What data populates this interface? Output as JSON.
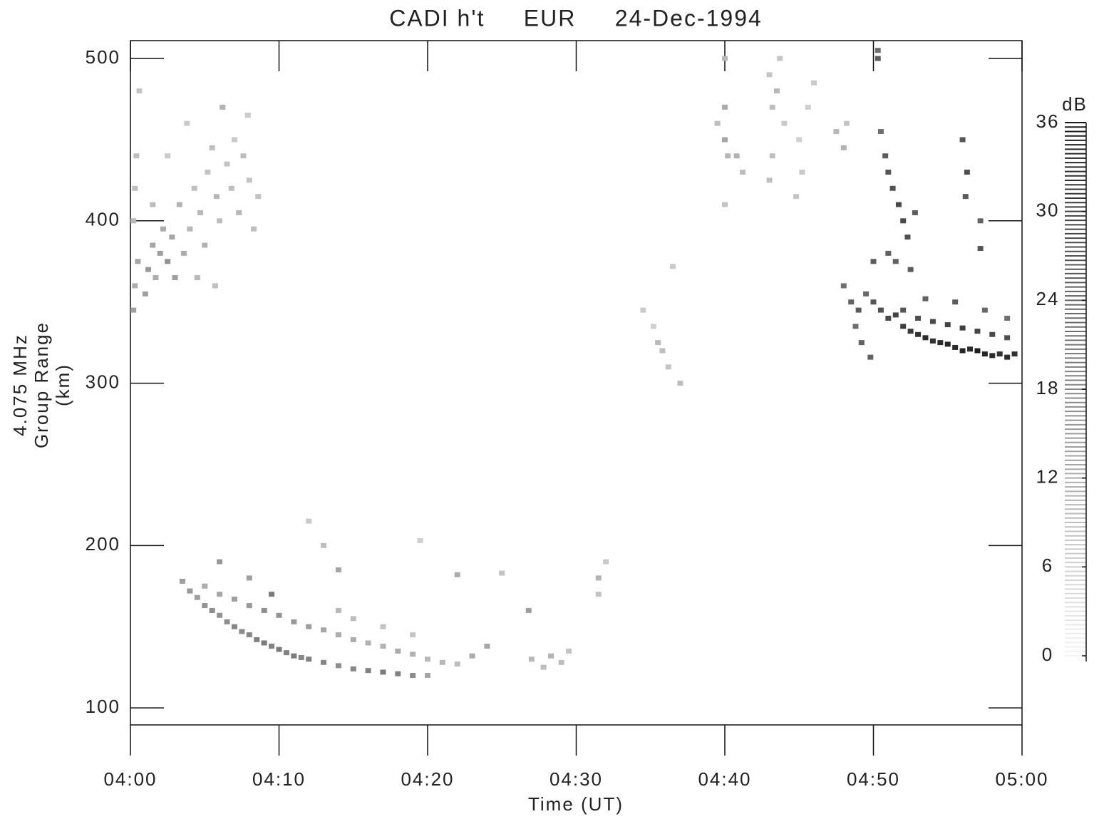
{
  "chart_data": {
    "type": "heatmap",
    "title": "CADI h't     EUR     24-Dec-1994",
    "x_label": "Time (UT)",
    "y_label": [
      "4.075 MHz",
      "Group Range",
      "(km)"
    ],
    "xlim": [
      0,
      60
    ],
    "xticks": [
      {
        "value": 0,
        "label": "04:00"
      },
      {
        "value": 10,
        "label": "04:10"
      },
      {
        "value": 20,
        "label": "04:20"
      },
      {
        "value": 30,
        "label": "04:30"
      },
      {
        "value": 40,
        "label": "04:40"
      },
      {
        "value": 50,
        "label": "04:50"
      },
      {
        "value": 60,
        "label": "05:00"
      }
    ],
    "ylim": [
      89.5,
      511
    ],
    "yticks": [
      100,
      200,
      300,
      400,
      500
    ],
    "colorbar": {
      "label": "dB",
      "lim": [
        0,
        36
      ],
      "ticks": [
        0,
        6,
        12,
        18,
        24,
        30,
        36
      ]
    },
    "x": [
      0.2,
      0.3,
      0.5,
      0.2,
      0.3,
      0.4,
      0.6,
      1,
      1.2,
      1.5,
      1.7,
      2,
      2.2,
      2.5,
      2.8,
      3,
      3.3,
      3.6,
      4,
      4.3,
      4.7,
      5,
      5.2,
      5.5,
      5.8,
      6,
      6.2,
      6.5,
      6.8,
      7,
      7.3,
      7.6,
      8,
      8.3,
      8.6,
      4.5,
      5.7,
      2.5,
      1.5,
      3.8,
      7.9,
      3.5,
      4,
      4.5,
      5,
      5.5,
      6,
      6.5,
      7,
      7.5,
      8,
      8.5,
      9,
      9.5,
      10,
      10.5,
      11,
      11.5,
      12,
      13,
      14,
      15,
      16,
      17,
      18,
      19,
      20,
      5,
      6,
      7,
      8,
      9,
      9.5,
      10,
      11,
      12,
      13,
      14,
      15,
      16,
      17,
      18,
      19,
      20,
      21,
      22,
      23,
      24,
      14,
      15,
      17,
      19,
      6,
      8,
      12,
      14,
      22,
      25,
      13,
      19.5,
      26.8,
      27,
      27.8,
      28.3,
      29,
      29.5,
      31.5,
      31.5,
      32,
      34.5,
      35.2,
      35.5,
      35.8,
      36.2,
      36.5,
      37,
      39.5,
      40,
      40,
      40.2,
      40,
      40,
      40.8,
      41.2,
      43,
      43.2,
      43.5,
      43.2,
      43.7,
      44,
      43,
      45,
      45.2,
      45.6,
      46,
      44.8,
      47.5,
      48,
      48.2,
      48,
      48.5,
      49,
      49.5,
      48.8,
      49.2,
      50,
      50.5,
      51,
      51.5,
      52,
      52.5,
      53,
      53.5,
      54,
      54.5,
      55,
      55.5,
      56,
      56.5,
      57,
      57.5,
      58,
      58.5,
      59,
      59.5,
      52,
      53,
      54,
      55,
      56,
      57,
      58,
      59,
      53.5,
      55.5,
      57.5,
      59,
      50,
      51,
      49.8,
      50.8,
      51,
      51.3,
      51.7,
      52,
      52.3,
      51.5,
      52.5,
      50.5,
      52.8,
      56,
      56.3,
      56.2,
      57.2,
      57.2,
      50.3,
      50.3
    ],
    "y": [
      345,
      360,
      375,
      400,
      420,
      440,
      480,
      355,
      370,
      385,
      365,
      380,
      395,
      375,
      390,
      365,
      410,
      380,
      395,
      420,
      405,
      385,
      430,
      445,
      415,
      400,
      470,
      435,
      420,
      450,
      405,
      440,
      425,
      395,
      415,
      365,
      360,
      440,
      410,
      460,
      465,
      178,
      172,
      168,
      163,
      160,
      157,
      153,
      150,
      147,
      145,
      142,
      140,
      138,
      136,
      134,
      132,
      131,
      130,
      128,
      126,
      124,
      123,
      122,
      121,
      120,
      120,
      175,
      170,
      167,
      163,
      160,
      170,
      157,
      153,
      150,
      148,
      145,
      142,
      140,
      138,
      135,
      133,
      130,
      128,
      127,
      132,
      138,
      160,
      155,
      150,
      145,
      190,
      180,
      215,
      185,
      182,
      183,
      200,
      203,
      160,
      130,
      125,
      132,
      128,
      135,
      180,
      170,
      190,
      345,
      335,
      325,
      320,
      310,
      372,
      300,
      460,
      470,
      450,
      440,
      410,
      500,
      440,
      430,
      490,
      470,
      480,
      440,
      500,
      460,
      425,
      450,
      430,
      470,
      485,
      415,
      455,
      445,
      460,
      360,
      350,
      345,
      355,
      335,
      325,
      350,
      345,
      340,
      342,
      335,
      332,
      330,
      328,
      326,
      325,
      324,
      322,
      320,
      321,
      320,
      318,
      317,
      318,
      316,
      318,
      345,
      340,
      338,
      336,
      334,
      332,
      330,
      328,
      352,
      350,
      345,
      340,
      375,
      380,
      316,
      440,
      430,
      420,
      410,
      400,
      390,
      375,
      370,
      455,
      405,
      450,
      430,
      415,
      400,
      383,
      505,
      500
    ],
    "values": [
      14,
      12,
      13,
      10,
      9,
      9,
      8,
      14,
      15,
      13,
      12,
      14,
      12,
      16,
      13,
      14,
      11,
      12,
      10,
      9,
      10,
      11,
      8,
      9,
      10,
      9,
      11,
      8,
      9,
      7,
      10,
      9,
      8,
      9,
      8,
      10,
      9,
      7,
      9,
      7,
      7,
      14,
      15,
      14,
      16,
      17,
      16,
      17,
      18,
      17,
      18,
      19,
      20,
      19,
      20,
      19,
      20,
      18,
      19,
      18,
      17,
      18,
      19,
      20,
      19,
      17,
      13,
      12,
      13,
      14,
      15,
      17,
      20,
      16,
      15,
      14,
      13,
      12,
      12,
      11,
      11,
      12,
      11,
      10,
      10,
      9,
      12,
      13,
      10,
      9,
      8,
      8,
      15,
      14,
      7,
      13,
      12,
      8,
      9,
      6,
      14,
      10,
      9,
      11,
      9,
      8,
      11,
      8,
      7,
      7,
      6,
      10,
      9,
      8,
      7,
      9,
      9,
      12,
      13,
      10,
      8,
      10,
      11,
      9,
      8,
      9,
      10,
      9,
      8,
      7,
      9,
      6,
      7,
      6,
      7,
      8,
      10,
      11,
      8,
      22,
      24,
      25,
      23,
      22,
      24,
      26,
      27,
      28,
      29,
      30,
      31,
      32,
      33,
      32,
      33,
      34,
      33,
      34,
      33,
      35,
      34,
      33,
      32,
      33,
      32,
      26,
      27,
      28,
      29,
      30,
      29,
      28,
      27,
      24,
      25,
      23,
      22,
      25,
      24,
      24,
      25,
      26,
      27,
      28,
      28,
      27,
      24,
      25,
      22,
      25,
      26,
      27,
      25,
      24,
      26,
      22,
      25
    ]
  }
}
